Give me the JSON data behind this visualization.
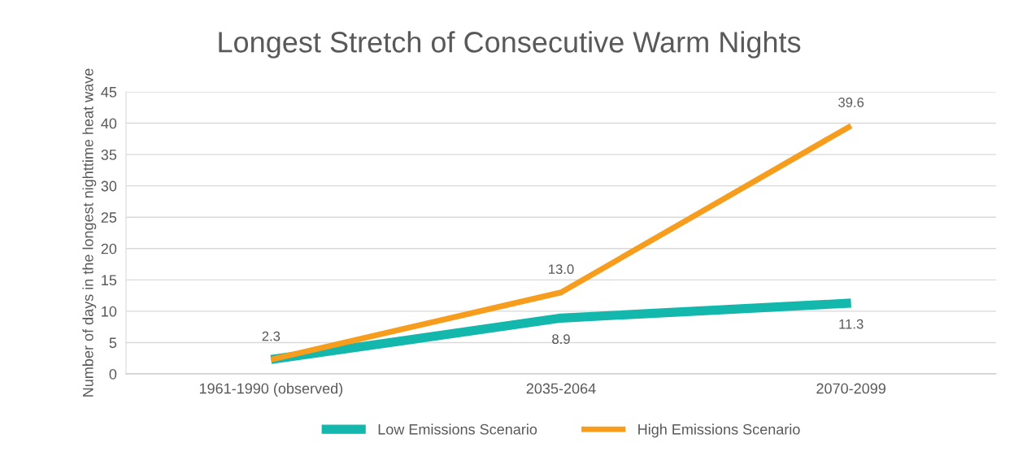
{
  "chart_data": {
    "type": "line",
    "title": "Longest Stretch of Consecutive Warm Nights",
    "ylabel": "Number of days in the longest nighttime heat wave",
    "categories": [
      "1961-1990 (observed)",
      "2035-2064",
      "2070-2099"
    ],
    "series": [
      {
        "name": "Low Emissions Scenario",
        "color": "#13b7ab",
        "values": [
          2.3,
          8.9,
          11.3
        ],
        "value_labels": [
          null,
          "8.9",
          "11.3"
        ]
      },
      {
        "name": "High Emissions Scenario",
        "color": "#f79d1e",
        "values": [
          2.3,
          13.0,
          39.6
        ],
        "value_labels": [
          "2.3",
          "13.0",
          "39.6"
        ]
      }
    ],
    "ylim": [
      0,
      45
    ],
    "yticks": [
      0,
      5,
      10,
      15,
      20,
      25,
      30,
      35,
      40,
      45
    ],
    "grid": "y",
    "legend": "bottom",
    "marker": "none",
    "line_style": "solid"
  }
}
